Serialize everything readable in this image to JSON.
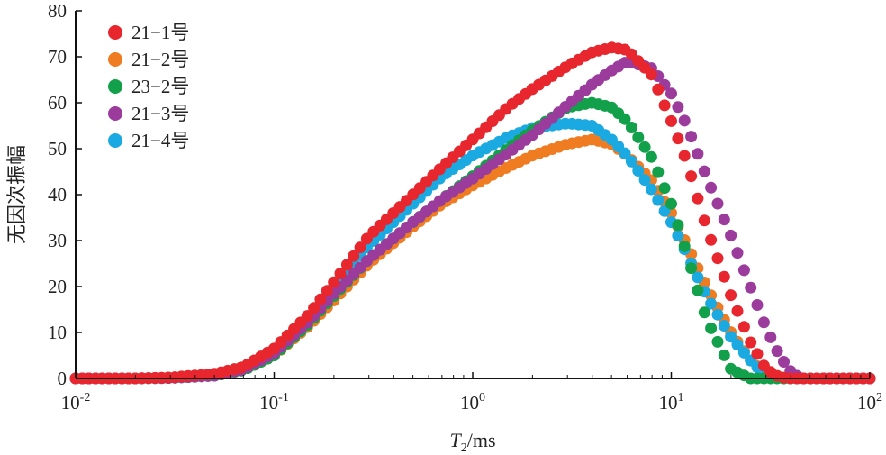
{
  "chart_data": {
    "type": "scatter",
    "xscale": "log",
    "xlim": [
      0.01,
      100
    ],
    "ylim": [
      0,
      80
    ],
    "ylabel": "无因次振幅",
    "xlabel": "T2/ms",
    "xlabel_main": "T",
    "xlabel_sub": "2",
    "xlabel_unit": "/ms",
    "yticks": [
      0,
      10,
      20,
      30,
      40,
      50,
      60,
      70,
      80
    ],
    "yticklabels": [
      "0",
      "10",
      "20",
      "30",
      "40",
      "50",
      "60",
      "70",
      "80"
    ],
    "xticks": [
      0.01,
      0.1,
      1,
      10,
      100
    ],
    "xticklabels": [
      {
        "base": "10",
        "exp": "-2"
      },
      {
        "base": "10",
        "exp": "-1"
      },
      {
        "base": "10",
        "exp": "0"
      },
      {
        "base": "10",
        "exp": "1"
      },
      {
        "base": "10",
        "exp": "2"
      }
    ],
    "legend_position": "top-left",
    "grid": false,
    "x": [
      0.01,
      0.02,
      0.03,
      0.05,
      0.07,
      0.1,
      0.15,
      0.2,
      0.3,
      0.5,
      0.7,
      1,
      1.5,
      2,
      3,
      4,
      5,
      6,
      8,
      10,
      12,
      15,
      20,
      25,
      30,
      35,
      40,
      45,
      50,
      100
    ],
    "series": [
      {
        "name": "21−1号",
        "color": "#e8262d",
        "values": [
          0,
          0,
          0.2,
          1,
          2.5,
          6.5,
          14,
          21,
          31,
          40,
          46,
          52,
          59,
          63,
          68,
          71,
          72,
          71.5,
          66,
          56,
          47,
          33,
          18,
          8,
          2,
          0.3,
          0,
          0,
          0,
          0
        ]
      },
      {
        "name": "21−2号",
        "color": "#f07c22",
        "values": [
          0,
          0,
          0.1,
          0.6,
          1.8,
          5,
          11.5,
          17,
          25,
          33,
          38,
          42,
          46,
          48.5,
          51,
          52,
          51,
          48.5,
          43,
          36,
          29,
          20,
          10,
          4,
          1,
          0.1,
          0,
          0,
          0,
          0
        ]
      },
      {
        "name": "23−2号",
        "color": "#12a04a",
        "values": [
          0,
          0,
          0.1,
          0.6,
          1.8,
          5,
          12,
          18,
          26,
          34,
          39,
          44,
          50,
          54,
          59,
          60,
          59,
          56,
          48,
          38,
          27,
          13,
          2,
          0,
          0,
          0,
          0,
          0,
          0,
          0
        ]
      },
      {
        "name": "21−3号",
        "color": "#9b3b9c",
        "values": [
          0,
          0,
          0.1,
          0.6,
          2,
          5.5,
          12.5,
          18.5,
          26,
          34,
          39,
          43.5,
          49,
          53,
          59.5,
          64,
          67,
          69,
          67.5,
          62,
          55,
          44,
          31,
          20,
          11,
          5,
          1.5,
          0,
          0,
          0
        ]
      },
      {
        "name": "21−4号",
        "color": "#1aa9e1",
        "values": [
          0,
          0,
          0.1,
          0.6,
          2,
          5.5,
          13,
          20,
          29,
          38,
          44,
          48.5,
          52.5,
          54.5,
          55.5,
          55,
          52,
          48.5,
          41,
          34,
          27,
          18,
          9,
          4,
          0.5,
          0,
          0,
          0,
          0,
          0
        ]
      }
    ]
  }
}
